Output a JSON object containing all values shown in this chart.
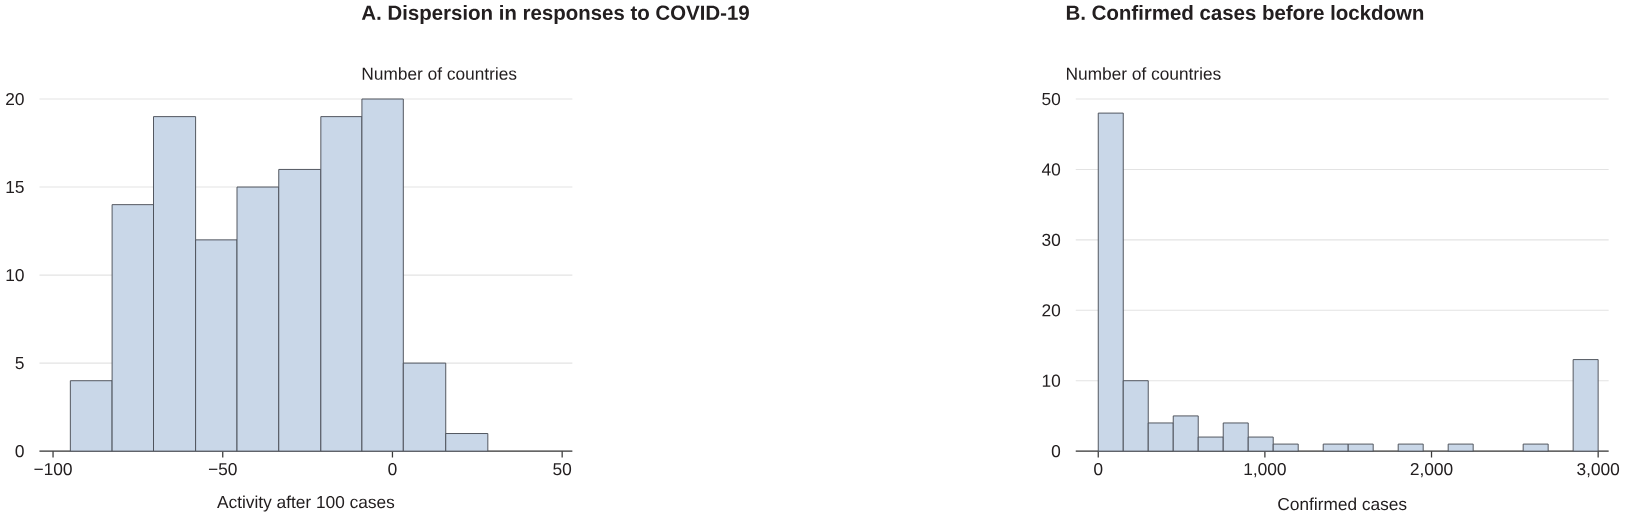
{
  "chart_data": [
    {
      "type": "histogram",
      "title": "A. Dispersion in responses to COVID-19",
      "ylabel": "Number of countries",
      "xlabel": "Activity after 100 cases",
      "bins": [
        -94.9,
        -82.6,
        -70.4,
        -58.0,
        -45.8,
        -33.5,
        -21.1,
        -9.0,
        3.2,
        15.7,
        28.1
      ],
      "values": [
        4,
        14,
        19,
        12,
        15,
        16,
        19,
        20,
        5,
        1
      ],
      "color": "#c9d7e8",
      "xlim": [
        -104,
        53
      ],
      "ylim": [
        0,
        20
      ],
      "xticks": [
        {
          "value": -100,
          "label": "−100"
        },
        {
          "value": -50,
          "label": "−50"
        },
        0,
        50
      ],
      "yticks": [
        0,
        5,
        10,
        15,
        20
      ],
      "grid": "y"
    },
    {
      "type": "histogram",
      "title": "B. Confirmed cases before lockdown",
      "ylabel": "Number of countries",
      "xlabel": "Confirmed cases",
      "bins": [
        0,
        150,
        300,
        450,
        600,
        750,
        900,
        1050,
        1200,
        1350,
        1500,
        1650,
        1800,
        1950,
        2100,
        2250,
        2400,
        2550,
        2700,
        2850,
        3000
      ],
      "values": [
        48,
        10,
        4,
        5,
        2,
        4,
        2,
        1,
        0,
        1,
        1,
        0,
        1,
        0,
        1,
        0,
        0,
        1,
        0,
        13
      ],
      "color": "#c9d7e8",
      "xlim": [
        -135,
        3063
      ],
      "ylim": [
        0,
        50
      ],
      "xticks": [
        0,
        {
          "value": 1000,
          "label": "1,000"
        },
        {
          "value": 2000,
          "label": "2,000"
        },
        {
          "value": 3000,
          "label": "3,000"
        }
      ],
      "yticks": [
        0,
        10,
        20,
        30,
        40,
        50
      ],
      "grid": "y"
    }
  ]
}
